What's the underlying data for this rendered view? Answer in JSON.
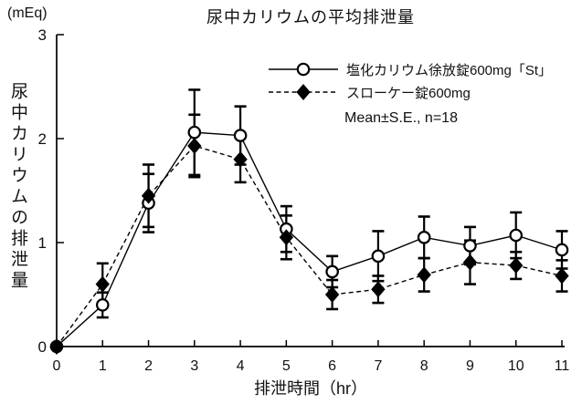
{
  "chart_data": {
    "type": "line",
    "title": "尿中カリウムの平均排泄量",
    "xlabel": "排泄時間（hr）",
    "ylabel": "尿中カリウムの排泄量",
    "y_unit": "(mEq)",
    "annotation": "Mean±S.E., n=18",
    "xlim": [
      0,
      11
    ],
    "ylim": [
      0,
      3
    ],
    "x_ticks": [
      0,
      1,
      2,
      3,
      4,
      5,
      6,
      7,
      8,
      9,
      10,
      11
    ],
    "y_ticks": [
      0,
      1,
      2,
      3
    ],
    "grid": false,
    "legend_position": "upper-right-inside",
    "x": [
      0,
      1,
      2,
      3,
      4,
      5,
      6,
      7,
      8,
      9,
      10,
      11
    ],
    "series": [
      {
        "name": "塩化カリウム徐放錠600mg「St」",
        "marker": "open-circle",
        "line_style": "solid",
        "color": "#000000",
        "values": [
          0,
          0.4,
          1.38,
          2.06,
          2.03,
          1.13,
          0.72,
          0.87,
          1.05,
          0.97,
          1.07,
          0.93
        ],
        "errors": [
          0,
          0.12,
          0.28,
          0.41,
          0.28,
          0.22,
          0.15,
          0.24,
          0.2,
          0.18,
          0.22,
          0.18
        ]
      },
      {
        "name": "スローケー錠600mg",
        "marker": "filled-diamond",
        "line_style": "dashed",
        "color": "#000000",
        "values": [
          0,
          0.6,
          1.45,
          1.93,
          1.8,
          1.05,
          0.5,
          0.55,
          0.69,
          0.81,
          0.78,
          0.68
        ],
        "errors": [
          0,
          0.2,
          0.3,
          0.3,
          0.22,
          0.21,
          0.14,
          0.13,
          0.16,
          0.21,
          0.13,
          0.15
        ]
      }
    ]
  }
}
